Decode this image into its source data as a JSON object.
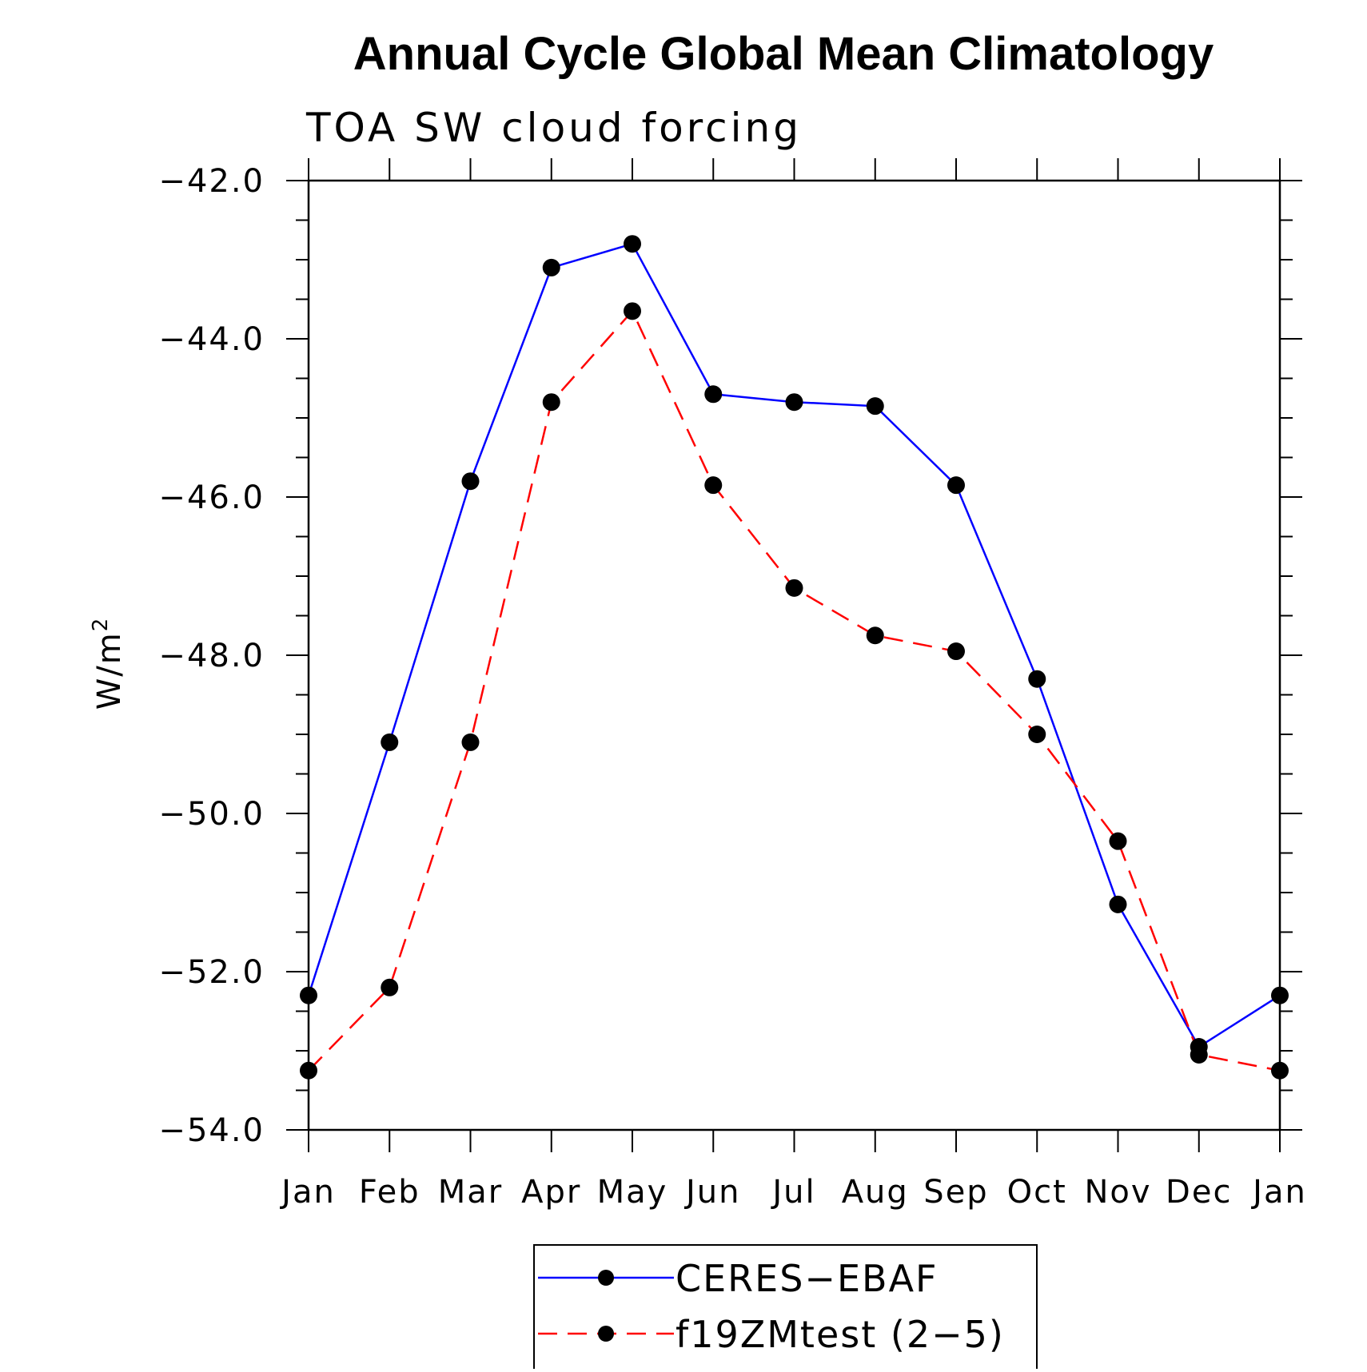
{
  "chart_data": {
    "type": "line",
    "title": "Annual Cycle Global Mean Climatology",
    "subtitle": "TOA SW cloud forcing",
    "ylabel": "W/m",
    "ylabel_superscript": "2",
    "xlabel": "",
    "categories": [
      "Jan",
      "Feb",
      "Mar",
      "Apr",
      "May",
      "Jun",
      "Jul",
      "Aug",
      "Sep",
      "Oct",
      "Nov",
      "Dec",
      "Jan"
    ],
    "ylim": [
      -54.0,
      -42.0
    ],
    "yticks": [
      -42.0,
      -44.0,
      -46.0,
      -48.0,
      -50.0,
      -52.0,
      -54.0
    ],
    "ytick_labels": [
      "−42.0",
      "−44.0",
      "−46.0",
      "−48.0",
      "−50.0",
      "−52.0",
      "−54.0"
    ],
    "series": [
      {
        "name": "CERES−EBAF",
        "color": "#0000ff",
        "line_style": "solid",
        "marker": "filled-circle",
        "values": [
          -52.3,
          -49.1,
          -45.8,
          -43.1,
          -42.8,
          -44.7,
          -44.8,
          -44.85,
          -45.85,
          -48.3,
          -51.15,
          -52.95,
          -52.3
        ]
      },
      {
        "name": "f19ZMtest (2−5)",
        "color": "#ff0000",
        "line_style": "dashed",
        "marker": "filled-circle",
        "values": [
          -53.25,
          -52.2,
          -49.1,
          -44.8,
          -43.65,
          -45.85,
          -47.15,
          -47.75,
          -47.95,
          -49.0,
          -50.35,
          -53.05,
          -53.25
        ]
      }
    ],
    "legend_position": "bottom-center",
    "grid": false
  }
}
